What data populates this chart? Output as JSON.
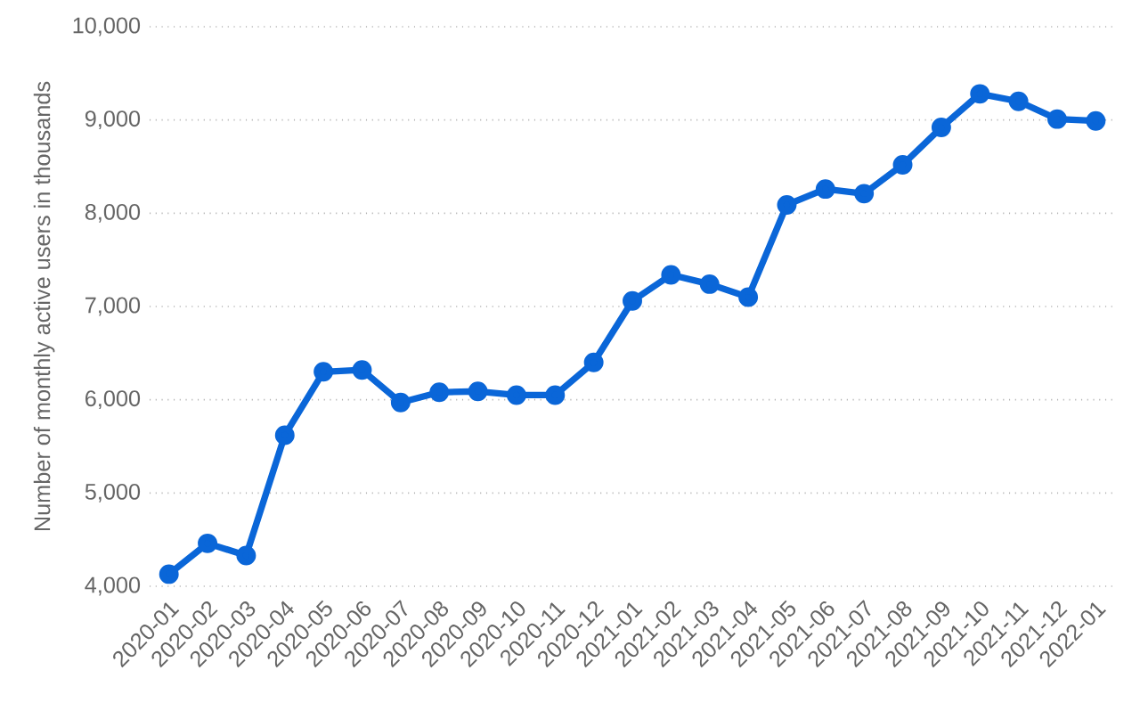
{
  "chart_data": {
    "type": "line",
    "ylabel": "Number of monthly active users in thousands",
    "categories": [
      "2020-01",
      "2020-02",
      "2020-03",
      "2020-04",
      "2020-05",
      "2020-06",
      "2020-07",
      "2020-08",
      "2020-09",
      "2020-10",
      "2020-11",
      "2020-12",
      "2021-01",
      "2021-02",
      "2021-03",
      "2021-04",
      "2021-05",
      "2021-06",
      "2021-07",
      "2021-08",
      "2021-09",
      "2021-10",
      "2021-11",
      "2021-12",
      "2022-01"
    ],
    "values": [
      4130,
      4460,
      4330,
      5620,
      6300,
      6320,
      5970,
      6080,
      6090,
      6050,
      6050,
      6400,
      7060,
      7340,
      7240,
      7100,
      8090,
      8260,
      8210,
      8520,
      8920,
      9280,
      9200,
      9010,
      8990
    ],
    "color": "#0a66d8",
    "marker": "circle",
    "grid": "y",
    "ylim": [
      4000,
      10000
    ],
    "yticks": [
      {
        "value": 4000,
        "label": "4,000"
      },
      {
        "value": 5000,
        "label": "5,000"
      },
      {
        "value": 6000,
        "label": "6,000"
      },
      {
        "value": 7000,
        "label": "7,000"
      },
      {
        "value": 8000,
        "label": "8,000"
      },
      {
        "value": 9000,
        "label": "9,000"
      },
      {
        "value": 10000,
        "label": "10,000"
      }
    ]
  }
}
